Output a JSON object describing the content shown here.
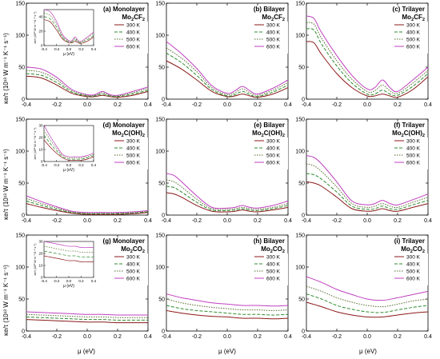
{
  "figure": {
    "y_axis_label": "κe/τ (10¹³ W m⁻¹ K⁻¹ s⁻¹)",
    "x_axis_label": "μ (eV)",
    "colors": {
      "300 K": "#8B1A1A",
      "400 K": "#2E8B2E",
      "500 K": "#556B2F",
      "600 K": "#C040C0"
    }
  },
  "chart_data": [
    {
      "type": "line",
      "label": "(a) Monolayer",
      "material": "Mo2CF2",
      "xlim": [
        -0.4,
        0.4
      ],
      "ylim": [
        0,
        150
      ],
      "yticks": [
        0,
        50,
        100,
        150
      ],
      "xticks": [
        -0.4,
        -0.2,
        0.0,
        0.2,
        0.4
      ],
      "x": [
        -0.4,
        -0.3,
        -0.2,
        -0.1,
        0.0,
        0.05,
        0.1,
        0.15,
        0.2,
        0.3,
        0.4
      ],
      "series": [
        {
          "name": "300 K",
          "values": [
            36,
            33,
            22,
            9,
            4,
            4,
            6,
            4,
            3,
            6,
            12
          ]
        },
        {
          "name": "400 K",
          "values": [
            40,
            37,
            26,
            11,
            5,
            5,
            8,
            5,
            4,
            8,
            14
          ]
        },
        {
          "name": "500 K",
          "values": [
            45,
            42,
            30,
            13,
            6,
            6,
            10,
            6,
            5,
            10,
            17
          ]
        },
        {
          "name": "600 K",
          "values": [
            50,
            47,
            34,
            15,
            7,
            7,
            12,
            7,
            6,
            12,
            19
          ]
        }
      ],
      "inset": {
        "xticks": [
          -0.4,
          -0.2,
          0.0,
          0.2,
          0.4
        ],
        "yticks": [
          0,
          20,
          40
        ],
        "ylim": [
          0,
          50
        ],
        "xlabel": "μ (eV)",
        "ylabel": "κe/τ (10¹³ W m⁻¹ K⁻¹ s⁻¹)"
      }
    },
    {
      "type": "line",
      "label": "(b) Bilayer",
      "material": "Mo2CF2",
      "xlim": [
        -0.4,
        0.4
      ],
      "ylim": [
        0,
        150
      ],
      "yticks": [
        0,
        50,
        100,
        150
      ],
      "xticks": [
        -0.4,
        -0.2,
        0.0,
        0.2,
        0.4
      ],
      "x": [
        -0.4,
        -0.3,
        -0.2,
        -0.1,
        0.0,
        0.05,
        0.1,
        0.15,
        0.2,
        0.3,
        0.4
      ],
      "series": [
        {
          "name": "300 K",
          "values": [
            60,
            47,
            30,
            12,
            4,
            5,
            8,
            5,
            3,
            8,
            18
          ]
        },
        {
          "name": "400 K",
          "values": [
            72,
            57,
            37,
            15,
            5,
            7,
            12,
            7,
            4,
            11,
            22
          ]
        },
        {
          "name": "500 K",
          "values": [
            80,
            64,
            43,
            18,
            7,
            10,
            16,
            10,
            6,
            14,
            26
          ]
        },
        {
          "name": "600 K",
          "values": [
            90,
            71,
            48,
            21,
            9,
            13,
            20,
            13,
            8,
            17,
            30
          ]
        }
      ]
    },
    {
      "type": "line",
      "label": "(c) Trilayer",
      "material": "Mo2CF2",
      "xlim": [
        -0.4,
        0.4
      ],
      "ylim": [
        0,
        150
      ],
      "yticks": [
        0,
        50,
        100,
        150
      ],
      "xticks": [
        -0.4,
        -0.2,
        0.0,
        0.2,
        0.4
      ],
      "x": [
        -0.4,
        -0.35,
        -0.3,
        -0.2,
        -0.1,
        0.0,
        0.05,
        0.1,
        0.15,
        0.2,
        0.3,
        0.4
      ],
      "series": [
        {
          "name": "300 K",
          "values": [
            90,
            88,
            70,
            40,
            18,
            5,
            5,
            8,
            5,
            3,
            15,
            35
          ]
        },
        {
          "name": "400 K",
          "values": [
            110,
            108,
            86,
            52,
            25,
            8,
            8,
            14,
            8,
            6,
            20,
            40
          ]
        },
        {
          "name": "500 K",
          "values": [
            120,
            117,
            95,
            60,
            31,
            12,
            13,
            22,
            13,
            9,
            25,
            45
          ]
        },
        {
          "name": "600 K",
          "values": [
            130,
            126,
            104,
            68,
            37,
            16,
            18,
            30,
            18,
            12,
            30,
            50
          ]
        }
      ]
    },
    {
      "type": "line",
      "label": "(d) Monolayer",
      "material": "Mo2C(OH)2",
      "xlim": [
        -0.4,
        0.4
      ],
      "ylim": [
        0,
        150
      ],
      "yticks": [
        0,
        50,
        100,
        150
      ],
      "xticks": [
        -0.4,
        -0.2,
        0.0,
        0.2,
        0.4
      ],
      "x": [
        -0.4,
        -0.3,
        -0.2,
        -0.1,
        0.0,
        0.1,
        0.2,
        0.3,
        0.4
      ],
      "series": [
        {
          "name": "300 K",
          "values": [
            18,
            12,
            7,
            3,
            1,
            1,
            1,
            2,
            4
          ]
        },
        {
          "name": "400 K",
          "values": [
            22,
            15,
            9,
            4,
            2,
            2,
            2,
            3,
            5
          ]
        },
        {
          "name": "500 K",
          "values": [
            26,
            18,
            11,
            5,
            3,
            3,
            3,
            4,
            6
          ]
        },
        {
          "name": "600 K",
          "values": [
            30,
            21,
            13,
            6,
            4,
            4,
            4,
            5,
            7
          ]
        }
      ],
      "inset": {
        "xticks": [
          -0.4,
          -0.2,
          0.0,
          0.2,
          0.4
        ],
        "yticks": [
          0,
          10,
          20,
          30
        ],
        "ylim": [
          0,
          30
        ],
        "xlabel": "μ (eV)",
        "ylabel": "κe/τ (10¹³ W m⁻¹ K⁻¹ s⁻¹)"
      }
    },
    {
      "type": "line",
      "label": "(e) Bilayer",
      "material": "Mo2C(OH)2",
      "xlim": [
        -0.4,
        0.4
      ],
      "ylim": [
        0,
        150
      ],
      "yticks": [
        0,
        50,
        100,
        150
      ],
      "xticks": [
        -0.4,
        -0.2,
        0.0,
        0.2,
        0.4
      ],
      "x": [
        -0.4,
        -0.35,
        -0.3,
        -0.2,
        -0.1,
        0.0,
        0.05,
        0.1,
        0.15,
        0.2,
        0.3,
        0.4
      ],
      "series": [
        {
          "name": "300 K",
          "values": [
            35,
            33,
            28,
            15,
            6,
            5,
            6,
            8,
            6,
            5,
            8,
            12
          ]
        },
        {
          "name": "400 K",
          "values": [
            45,
            43,
            36,
            20,
            8,
            7,
            8,
            10,
            8,
            7,
            10,
            15
          ]
        },
        {
          "name": "500 K",
          "values": [
            55,
            52,
            44,
            25,
            10,
            9,
            10,
            12,
            10,
            9,
            12,
            18
          ]
        },
        {
          "name": "600 K",
          "values": [
            65,
            62,
            52,
            30,
            12,
            11,
            12,
            15,
            12,
            11,
            15,
            22
          ]
        }
      ]
    },
    {
      "type": "line",
      "label": "(f) Trilayer",
      "material": "Mo2C(OH)2",
      "xlim": [
        -0.4,
        0.4
      ],
      "ylim": [
        0,
        150
      ],
      "yticks": [
        0,
        50,
        100,
        150
      ],
      "xticks": [
        -0.4,
        -0.2,
        0.0,
        0.2,
        0.4
      ],
      "x": [
        -0.4,
        -0.35,
        -0.3,
        -0.2,
        -0.1,
        0.0,
        0.05,
        0.1,
        0.15,
        0.2,
        0.3,
        0.4
      ],
      "series": [
        {
          "name": "300 K",
          "values": [
            52,
            50,
            45,
            28,
            10,
            6,
            7,
            10,
            7,
            6,
            12,
            18
          ]
        },
        {
          "name": "400 K",
          "values": [
            65,
            63,
            56,
            36,
            14,
            9,
            10,
            14,
            10,
            9,
            16,
            23
          ]
        },
        {
          "name": "500 K",
          "values": [
            80,
            77,
            68,
            44,
            18,
            12,
            14,
            18,
            14,
            12,
            20,
            28
          ]
        },
        {
          "name": "600 K",
          "values": [
            93,
            90,
            80,
            52,
            22,
            16,
            18,
            23,
            18,
            16,
            24,
            33
          ]
        }
      ]
    },
    {
      "type": "line",
      "label": "(g) Monolayer",
      "material": "Mo2CO2",
      "xlim": [
        -0.4,
        0.4
      ],
      "ylim": [
        0,
        150
      ],
      "yticks": [
        0,
        50,
        100,
        150
      ],
      "xticks": [
        -0.4,
        -0.2,
        0.0,
        0.2,
        0.4
      ],
      "x": [
        -0.4,
        -0.3,
        -0.2,
        -0.1,
        0.0,
        0.1,
        0.2,
        0.3,
        0.4
      ],
      "series": [
        {
          "name": "300 K",
          "values": [
            18,
            17,
            16,
            15,
            14,
            14,
            13,
            13,
            13
          ]
        },
        {
          "name": "400 K",
          "values": [
            22,
            21,
            20,
            19,
            18,
            18,
            17,
            17,
            17
          ]
        },
        {
          "name": "500 K",
          "values": [
            26,
            25,
            24,
            23,
            22,
            22,
            21,
            21,
            21
          ]
        },
        {
          "name": "600 K",
          "values": [
            30,
            29,
            28,
            27,
            26,
            26,
            25,
            25,
            25
          ]
        }
      ],
      "inset": {
        "xticks": [
          -0.4,
          -0.2,
          0.0,
          0.2,
          0.4
        ],
        "yticks": [
          0,
          10,
          20,
          30
        ],
        "ylim": [
          0,
          30
        ],
        "xlabel": "μ (eV)",
        "ylabel": "κe/τ (10¹³ W m⁻¹ K⁻¹ s⁻¹)"
      }
    },
    {
      "type": "line",
      "label": "(h) Bilayer",
      "material": "Mo2CO2",
      "xlim": [
        -0.4,
        0.4
      ],
      "ylim": [
        0,
        150
      ],
      "yticks": [
        0,
        50,
        100,
        150
      ],
      "xticks": [
        -0.4,
        -0.2,
        0.0,
        0.2,
        0.4
      ],
      "x": [
        -0.4,
        -0.3,
        -0.2,
        -0.1,
        0.0,
        0.1,
        0.2,
        0.3,
        0.4
      ],
      "series": [
        {
          "name": "300 K",
          "values": [
            32,
            28,
            25,
            23,
            22,
            20,
            20,
            19,
            20
          ]
        },
        {
          "name": "400 K",
          "values": [
            40,
            35,
            32,
            30,
            28,
            26,
            26,
            25,
            26
          ]
        },
        {
          "name": "500 K",
          "values": [
            50,
            44,
            40,
            37,
            35,
            33,
            33,
            32,
            33
          ]
        },
        {
          "name": "600 K",
          "values": [
            58,
            52,
            48,
            44,
            42,
            40,
            40,
            39,
            40
          ]
        }
      ]
    },
    {
      "type": "line",
      "label": "(i) Trilayer",
      "material": "Mo2CO2",
      "xlim": [
        -0.4,
        0.4
      ],
      "ylim": [
        0,
        150
      ],
      "yticks": [
        0,
        50,
        100,
        150
      ],
      "xticks": [
        -0.4,
        -0.2,
        0.0,
        0.2,
        0.4
      ],
      "x": [
        -0.4,
        -0.3,
        -0.2,
        -0.1,
        0.0,
        0.1,
        0.2,
        0.3,
        0.4
      ],
      "series": [
        {
          "name": "300 K",
          "values": [
            45,
            38,
            30,
            25,
            22,
            22,
            25,
            28,
            30
          ]
        },
        {
          "name": "400 K",
          "values": [
            58,
            50,
            40,
            34,
            30,
            29,
            33,
            37,
            40
          ]
        },
        {
          "name": "500 K",
          "values": [
            70,
            62,
            52,
            45,
            40,
            38,
            42,
            47,
            50
          ]
        },
        {
          "name": "600 K",
          "values": [
            85,
            76,
            65,
            57,
            50,
            48,
            52,
            57,
            62
          ]
        }
      ]
    }
  ]
}
